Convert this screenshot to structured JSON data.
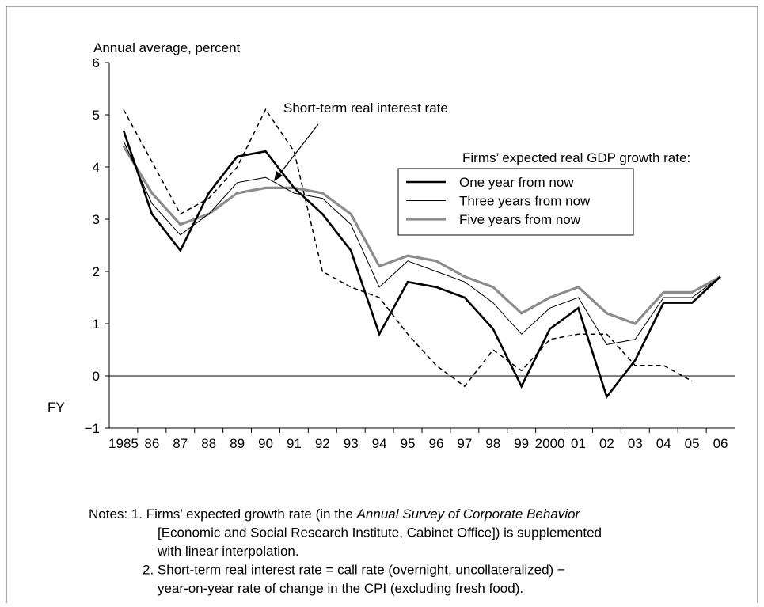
{
  "chart_data": {
    "type": "line",
    "y_label": "Annual average, percent",
    "x_prefix": "FY",
    "categories": [
      "1985",
      "86",
      "87",
      "88",
      "89",
      "90",
      "91",
      "92",
      "93",
      "94",
      "95",
      "96",
      "97",
      "98",
      "99",
      "2000",
      "01",
      "02",
      "03",
      "04",
      "05",
      "06"
    ],
    "ylim": [
      -1,
      6
    ],
    "yticks": [
      {
        "value": -1,
        "label": "−1"
      },
      0,
      1,
      2,
      3,
      4,
      5,
      6
    ],
    "legend_title": "Firms’ expected real GDP growth rate:",
    "annotation": "Short-term real interest rate",
    "series": [
      {
        "name": "One year from now",
        "color": "#000000",
        "width": 2.6,
        "values": [
          4.7,
          3.1,
          2.4,
          3.5,
          4.2,
          4.3,
          3.6,
          3.1,
          2.4,
          0.8,
          1.8,
          1.7,
          1.5,
          0.9,
          -0.2,
          0.9,
          1.3,
          -0.4,
          0.3,
          1.4,
          1.4,
          1.9
        ]
      },
      {
        "name": "Three years from now",
        "color": "#000000",
        "width": 1,
        "values": [
          4.5,
          3.3,
          2.7,
          3.1,
          3.7,
          3.8,
          3.5,
          3.4,
          2.9,
          1.7,
          2.2,
          2.0,
          1.8,
          1.4,
          0.8,
          1.3,
          1.5,
          0.6,
          0.7,
          1.5,
          1.5,
          1.9
        ]
      },
      {
        "name": "Five years from now",
        "color": "#8c8c8c",
        "width": 3.2,
        "values": [
          4.4,
          3.5,
          2.9,
          3.1,
          3.5,
          3.6,
          3.6,
          3.5,
          3.1,
          2.1,
          2.3,
          2.2,
          1.9,
          1.7,
          1.2,
          1.5,
          1.7,
          1.2,
          1.0,
          1.6,
          1.6,
          1.9
        ]
      },
      {
        "name": "Short-term real interest rate",
        "color": "#000000",
        "width": 1.5,
        "dashed": true,
        "legend": false,
        "values": [
          5.1,
          4.1,
          3.1,
          3.4,
          4.0,
          5.1,
          4.3,
          2.0,
          1.7,
          1.5,
          0.8,
          0.2,
          -0.2,
          0.5,
          0.1,
          0.7,
          0.8,
          0.8,
          0.2,
          0.2,
          -0.1,
          null
        ]
      }
    ]
  },
  "notes": [
    [
      "Notes: 1. Firms’ expected growth rate (in the ",
      "Annual Survey of Corporate Behavior"
    ],
    [
      "[Economic and Social Research Institute, Cabinet Office]) is supplemented"
    ],
    [
      "with linear interpolation."
    ],
    [
      "2. Short-term real interest rate = call rate (overnight, uncollateralized) −"
    ],
    [
      "year-on-year rate of change in the CPI (excluding fresh food)."
    ]
  ]
}
